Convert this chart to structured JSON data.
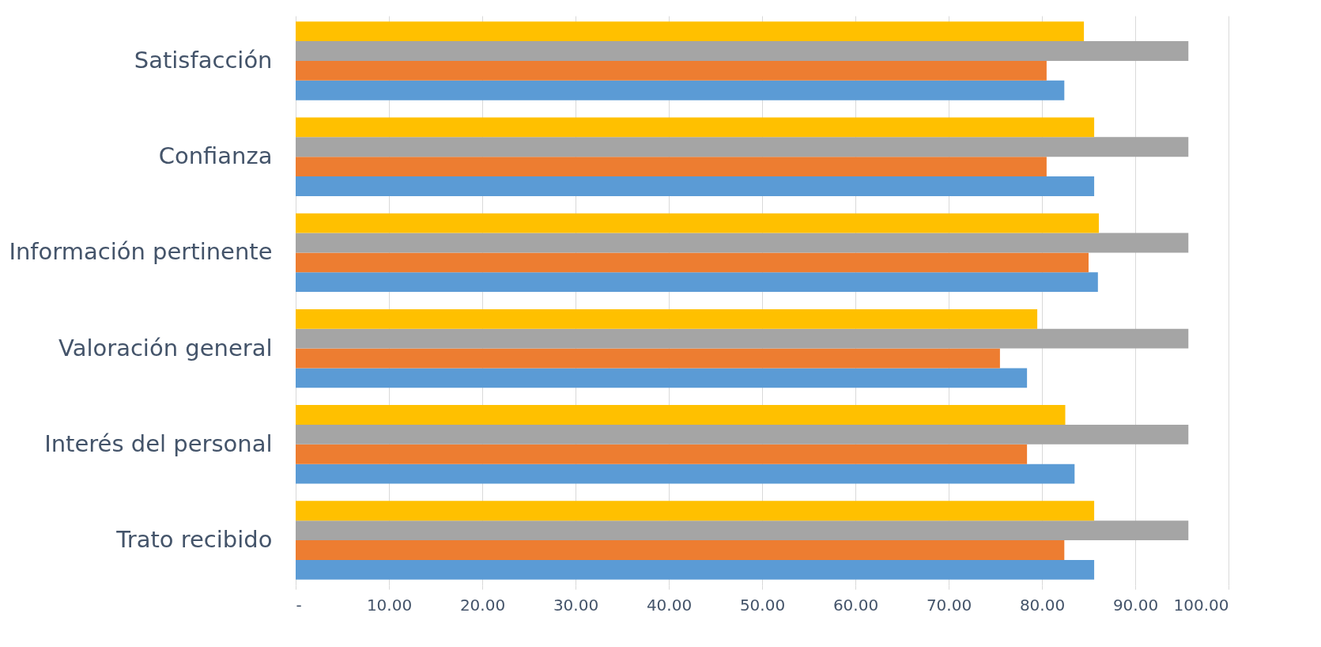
{
  "chart_data": {
    "type": "bar",
    "orientation": "horizontal",
    "categories": [
      "Satisfacción",
      "Confianza",
      "Información pertinente",
      "Valoración general",
      "Interés del personal",
      "Trato recibido"
    ],
    "series": [
      {
        "color": "#5b9bd5",
        "values": [
          82.4,
          85.6,
          86.0,
          78.4,
          83.5,
          85.6
        ]
      },
      {
        "color": "#ed7d31",
        "values": [
          80.5,
          80.5,
          85.0,
          75.5,
          78.4,
          82.4
        ]
      },
      {
        "color": "#a5a5a5",
        "values": [
          95.7,
          95.7,
          95.7,
          95.7,
          95.7,
          95.7
        ]
      },
      {
        "color": "#ffc000",
        "values": [
          84.5,
          85.6,
          86.1,
          79.5,
          82.5,
          85.6
        ]
      }
    ],
    "xlim": [
      0,
      100
    ],
    "xticks": [
      {
        "value": 0,
        "label": "-"
      },
      {
        "value": 10,
        "label": "10.00"
      },
      {
        "value": 20,
        "label": "20.00"
      },
      {
        "value": 30,
        "label": "30.00"
      },
      {
        "value": 40,
        "label": "40.00"
      },
      {
        "value": 50,
        "label": "50.00"
      },
      {
        "value": 60,
        "label": "60.00"
      },
      {
        "value": 70,
        "label": "70.00"
      },
      {
        "value": 80,
        "label": "80.00"
      },
      {
        "value": 90,
        "label": "90.00"
      },
      {
        "value": 100,
        "label": "100.00"
      }
    ],
    "grid": "x",
    "legend": false
  }
}
